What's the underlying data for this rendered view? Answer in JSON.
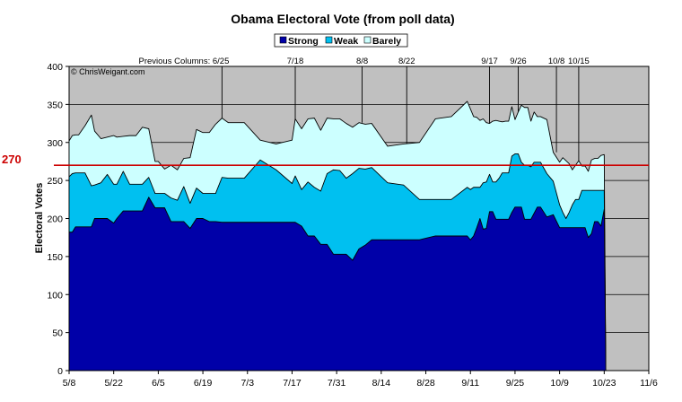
{
  "chart_data": {
    "type": "area",
    "title": "Obama Electoral Vote (from poll data)",
    "ylabel": "Electoral Votes",
    "xlabel": "",
    "ylim": [
      0,
      400
    ],
    "yticks": [
      0,
      50,
      100,
      150,
      200,
      250,
      300,
      350,
      400
    ],
    "xticks": [
      "5/8",
      "5/22",
      "6/5",
      "6/19",
      "7/3",
      "7/17",
      "7/31",
      "8/14",
      "8/28",
      "9/11",
      "9/25",
      "10/9",
      "10/23",
      "11/6"
    ],
    "grid": true,
    "stacked": true,
    "legend": {
      "position": "top-center",
      "entries": [
        "Strong",
        "Weak",
        "Barely"
      ]
    },
    "threshold": {
      "value": 270,
      "label": "270",
      "color": "#cc0000"
    },
    "copyright": "© ChrisWeigant.com",
    "annotations": [
      {
        "label": "Previous Columns: 6/25",
        "date_index": 48
      },
      {
        "label": "7/18",
        "date_index": 71
      },
      {
        "label": "8/8",
        "date_index": 92
      },
      {
        "label": "8/22",
        "date_index": 106
      },
      {
        "label": "9/17",
        "date_index": 132
      },
      {
        "label": "9/26",
        "date_index": 141
      },
      {
        "label": "10/8",
        "date_index": 153
      },
      {
        "label": "10/15",
        "date_index": 160
      }
    ],
    "start_date": "5/8",
    "series": [
      {
        "name": "Strong",
        "color": "#0000a8",
        "x": [
          0,
          1,
          2,
          3,
          5,
          7,
          8,
          10,
          12,
          14,
          15,
          17,
          19,
          21,
          23,
          25,
          27,
          28,
          30,
          32,
          34,
          36,
          38,
          40,
          42,
          44,
          46,
          48,
          50,
          55,
          60,
          65,
          70,
          71,
          73,
          75,
          77,
          79,
          81,
          83,
          85,
          87,
          89,
          91,
          93,
          95,
          100,
          105,
          110,
          115,
          120,
          125,
          126,
          127,
          128,
          129,
          130,
          131,
          132,
          133,
          134,
          135,
          136,
          137,
          138,
          139,
          140,
          141,
          142,
          143,
          144,
          145,
          146,
          147,
          148,
          150,
          152,
          154,
          155,
          156,
          157,
          158,
          159,
          160,
          161,
          162,
          163,
          164,
          165,
          166,
          167,
          168,
          168.5
        ],
        "values": [
          182,
          182,
          189,
          189,
          189,
          189,
          200,
          200,
          200,
          194,
          200,
          210,
          210,
          210,
          210,
          228,
          214,
          214,
          214,
          196,
          196,
          196,
          187,
          200,
          200,
          196,
          196,
          195,
          195,
          195,
          195,
          195,
          195,
          195,
          190,
          177,
          177,
          166,
          166,
          153,
          153,
          153,
          145,
          160,
          165,
          172,
          172,
          172,
          172,
          177,
          177,
          177,
          172,
          177,
          188,
          200,
          186,
          187,
          209,
          209,
          199,
          199,
          199,
          199,
          199,
          208,
          215,
          215,
          215,
          199,
          199,
          199,
          207,
          215,
          215,
          202,
          205,
          188,
          188,
          188,
          188,
          188,
          188,
          188,
          188,
          188,
          175,
          180,
          196,
          196,
          190,
          212,
          0
        ]
      },
      {
        "name": "Weak",
        "color": "#00c0f0",
        "x": [
          0,
          1,
          2,
          3,
          5,
          7,
          8,
          10,
          12,
          14,
          15,
          17,
          19,
          21,
          23,
          25,
          27,
          28,
          30,
          32,
          34,
          36,
          38,
          40,
          42,
          44,
          46,
          48,
          50,
          55,
          60,
          65,
          70,
          71,
          73,
          75,
          77,
          79,
          81,
          83,
          85,
          87,
          89,
          91,
          93,
          95,
          100,
          105,
          110,
          115,
          120,
          125,
          126,
          127,
          128,
          129,
          130,
          131,
          132,
          133,
          134,
          135,
          136,
          137,
          138,
          139,
          140,
          141,
          142,
          143,
          144,
          145,
          146,
          147,
          148,
          150,
          152,
          154,
          155,
          156,
          157,
          158,
          159,
          160,
          161,
          162,
          163,
          164,
          165,
          166,
          167,
          168,
          168.5
        ],
        "values": [
          73,
          77,
          71,
          71,
          71,
          54,
          44,
          47,
          58,
          51,
          45,
          52,
          35,
          35,
          35,
          26,
          19,
          19,
          19,
          31,
          28,
          46,
          33,
          40,
          33,
          37,
          37,
          59,
          58,
          58,
          82,
          69,
          51,
          61,
          48,
          71,
          64,
          70,
          93,
          111,
          110,
          100,
          114,
          106,
          100,
          95,
          75,
          72,
          53,
          48,
          48,
          64,
          66,
          64,
          53,
          41,
          61,
          61,
          49,
          39,
          49,
          54,
          61,
          61,
          61,
          74,
          70,
          70,
          59,
          71,
          71,
          69,
          67,
          59,
          59,
          57,
          44,
          30,
          20,
          12,
          20,
          30,
          37,
          37,
          49,
          49,
          62,
          57,
          41,
          41,
          47,
          25,
          0
        ]
      },
      {
        "name": "Barely",
        "color": "#ccffff",
        "x": [
          0,
          1,
          2,
          3,
          5,
          7,
          8,
          10,
          12,
          14,
          15,
          17,
          19,
          21,
          23,
          25,
          27,
          28,
          30,
          32,
          34,
          36,
          38,
          40,
          42,
          44,
          46,
          48,
          50,
          55,
          60,
          65,
          70,
          71,
          73,
          75,
          77,
          79,
          81,
          83,
          85,
          87,
          89,
          91,
          93,
          95,
          100,
          105,
          110,
          115,
          120,
          125,
          126,
          127,
          128,
          129,
          130,
          131,
          132,
          133,
          134,
          135,
          136,
          137,
          138,
          139,
          140,
          141,
          142,
          143,
          144,
          145,
          146,
          147,
          148,
          150,
          152,
          154,
          155,
          156,
          157,
          158,
          159,
          160,
          161,
          162,
          163,
          164,
          165,
          166,
          167,
          168,
          168.5
        ],
        "values": [
          47,
          50,
          50,
          50,
          62,
          93,
          71,
          58,
          49,
          64,
          62,
          46,
          64,
          64,
          75,
          64,
          42,
          42,
          32,
          43,
          40,
          37,
          60,
          77,
          80,
          80,
          91,
          78,
          73,
          73,
          26,
          34,
          57,
          75,
          80,
          83,
          91,
          80,
          73,
          67,
          68,
          72,
          61,
          60,
          59,
          58,
          48,
          54,
          75,
          106,
          109,
          113,
          106,
          93,
          92,
          88,
          84,
          78,
          67,
          80,
          81,
          75,
          67,
          68,
          68,
          65,
          45,
          55,
          75,
          76,
          76,
          60,
          66,
          60,
          60,
          71,
          38,
          56,
          72,
          76,
          64,
          46,
          45,
          51,
          32,
          32,
          25,
          40,
          42,
          42,
          46,
          47,
          0
        ]
      }
    ]
  }
}
